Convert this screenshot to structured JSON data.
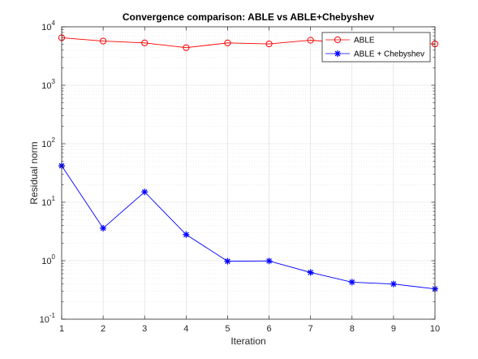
{
  "chart_data": {
    "type": "line",
    "title": "Convergence comparison: ABLE vs ABLE+Chebyshev",
    "xlabel": "Iteration",
    "ylabel": "Residual norm",
    "x": [
      1,
      2,
      3,
      4,
      5,
      6,
      7,
      8,
      9,
      10
    ],
    "xlim": [
      1,
      10
    ],
    "ylim": [
      0.1,
      10000
    ],
    "yscale": "log",
    "grid": true,
    "minor_grid": true,
    "legend_position": "top-right",
    "xticks": [
      "1",
      "2",
      "3",
      "4",
      "5",
      "6",
      "7",
      "8",
      "9",
      "10"
    ],
    "yticks": [
      {
        "value": 0.1,
        "base": "10",
        "exp": "-1"
      },
      {
        "value": 1,
        "base": "10",
        "exp": "0"
      },
      {
        "value": 10,
        "base": "10",
        "exp": "1"
      },
      {
        "value": 100,
        "base": "10",
        "exp": "2"
      },
      {
        "value": 1000,
        "base": "10",
        "exp": "3"
      },
      {
        "value": 10000,
        "base": "10",
        "exp": "4"
      }
    ],
    "series": [
      {
        "name": "ABLE",
        "color": "#ff0000",
        "marker": "circle",
        "values": [
          6500,
          5700,
          5300,
          4400,
          5300,
          5100,
          5900,
          5200,
          5300,
          5100
        ]
      },
      {
        "name": "ABLE + Chebyshev",
        "color": "#0000ff",
        "marker": "asterisk",
        "values": [
          42,
          3.6,
          15,
          2.8,
          0.98,
          0.99,
          0.63,
          0.43,
          0.4,
          0.33
        ]
      }
    ]
  }
}
